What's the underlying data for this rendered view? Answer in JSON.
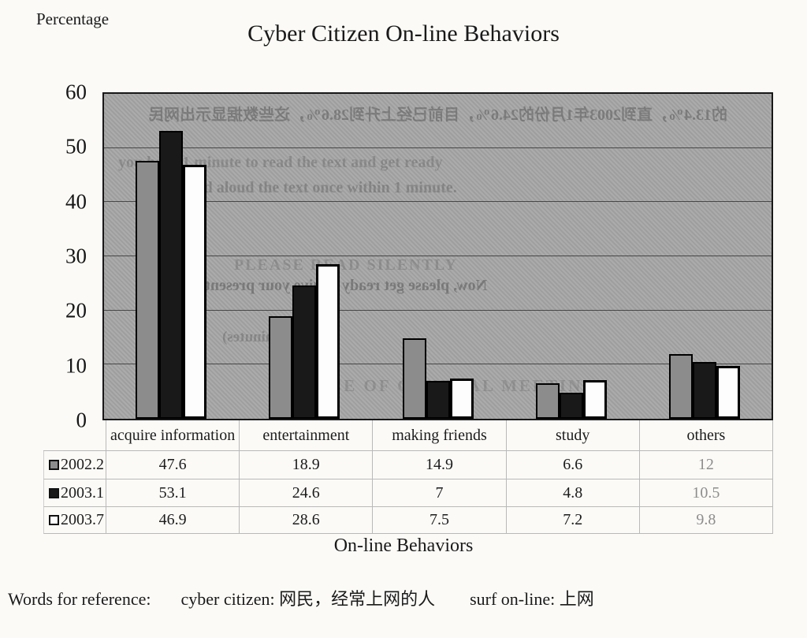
{
  "page": {
    "y_axis_title": "Percentage",
    "title": "Cyber Citizen On-line Behaviors",
    "x_axis_title": "On-line Behaviors",
    "footer": {
      "label": "Words for reference:",
      "entry1": "cyber citizen: 网民，经常上网的人",
      "entry2": "surf on-line: 上网"
    }
  },
  "chart_data": {
    "type": "bar",
    "title": "Cyber Citizen On-line Behaviors",
    "xlabel": "On-line Behaviors",
    "ylabel": "Percentage",
    "categories": [
      "acquire information",
      "entertainment",
      "making friends",
      "study",
      "others"
    ],
    "series": [
      {
        "name": "2002.2",
        "color": "#8c8c8c",
        "values": [
          47.6,
          18.9,
          14.9,
          6.6,
          12
        ]
      },
      {
        "name": "2003.1",
        "color": "#191919",
        "values": [
          53.1,
          24.6,
          7,
          4.8,
          10.5
        ]
      },
      {
        "name": "2003.7",
        "color": "#fdfdfd",
        "values": [
          46.9,
          28.6,
          7.5,
          7.2,
          9.8
        ]
      }
    ],
    "ylim": [
      0,
      60
    ],
    "yticks": [
      0,
      10,
      20,
      30,
      40,
      50,
      60
    ],
    "grid": true,
    "legend_position": "table-left",
    "plot_background": "#a7a7a7"
  },
  "ghost_text": [
    "的13.4%，直到2003年1月份的24.6%，目前已经上升到28.6%，这些数据显示出网民",
    "you have 1 minute to read the text and get ready",
    "please read aloud the text once within 1 minute.",
    "PLEASE READ SILENTLY",
    "Now, please get ready to give your presentation.",
    "(2 minutes)",
    "NOTICE OF GENERAL MEETING"
  ]
}
